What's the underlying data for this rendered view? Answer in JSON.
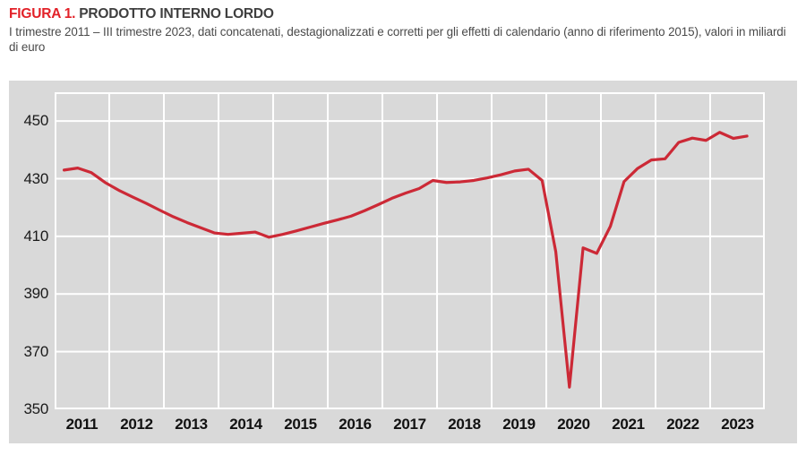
{
  "figure": {
    "label": "FIGURA 1.",
    "title": "PRODOTTO INTERNO LORDO",
    "subtitle": "I trimestre 2011 – III trimestre 2023, dati concatenati, destagionalizzati e corretti per gli effetti di calendario (anno di riferimento 2015), valori in miliardi di euro"
  },
  "colors": {
    "figure_label": "#e22128",
    "title_text": "#3f3f3f",
    "subtitle_text": "#4a4a4a",
    "panel_background": "#d9d9d9",
    "gridlines": "#ffffff",
    "line": "#cc2936",
    "tick_labels": "#1a1a1a"
  },
  "chart_data": {
    "type": "line",
    "title": "Prodotto interno lordo",
    "xlabel": "",
    "ylabel": "valori in miliardi di euro",
    "ylim": [
      350,
      460
    ],
    "y_ticks": [
      350,
      370,
      390,
      410,
      430,
      450
    ],
    "x_years": [
      2011,
      2012,
      2013,
      2014,
      2015,
      2016,
      2017,
      2018,
      2019,
      2020,
      2021,
      2022,
      2023
    ],
    "grid": true,
    "legend_position": "none",
    "frequency": "quarterly",
    "start_quarter": "2011-Q1",
    "end_quarter": "2023-Q3",
    "series": [
      {
        "name": "PIL, dati concatenati destagionalizzati e corretti per gli effetti di calendario",
        "color": "#cc2936",
        "values": [
          433.0,
          433.7,
          432.1,
          428.7,
          426.0,
          423.7,
          421.5,
          419.1,
          416.8,
          414.8,
          413.0,
          411.2,
          410.7,
          411.1,
          411.5,
          409.7,
          410.7,
          411.9,
          413.2,
          414.5,
          415.7,
          417.0,
          418.9,
          421.0,
          423.2,
          425.0,
          426.6,
          429.4,
          428.7,
          428.9,
          429.4,
          430.3,
          431.4,
          432.7,
          433.3,
          429.4,
          404.7,
          357.7,
          406.0,
          404.1,
          413.5,
          429.0,
          433.6,
          436.5,
          436.9,
          442.6,
          444.1,
          443.3,
          446.1,
          444.0,
          444.8
        ]
      }
    ]
  }
}
